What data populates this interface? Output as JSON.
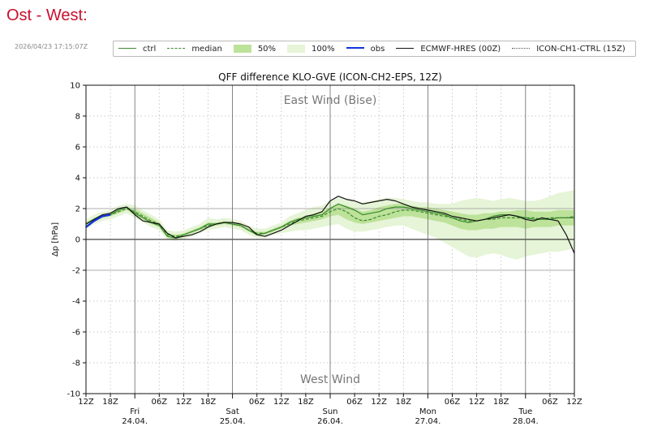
{
  "page": {
    "title": "Ost - West:",
    "timestamp": "2026/04/23 17:15:07Z"
  },
  "legend": {
    "items": [
      {
        "key": "ctrl",
        "label": "ctrl",
        "style": "line",
        "color": "#3a8a2e"
      },
      {
        "key": "median",
        "label": "median",
        "style": "dash",
        "color": "#3a8a2e"
      },
      {
        "key": "p50",
        "label": "50%",
        "style": "fill",
        "color": "#bde29a"
      },
      {
        "key": "p100",
        "label": "100%",
        "style": "fill",
        "color": "#e6f4d7"
      },
      {
        "key": "obs",
        "label": "obs",
        "style": "thick",
        "color": "#1133dd"
      },
      {
        "key": "ecmwf",
        "label": "ECMWF-HRES (00Z)",
        "style": "line",
        "color": "#111111"
      },
      {
        "key": "ch1",
        "label": "ICON-CH1-CTRL (15Z)",
        "style": "dot",
        "color": "#555555"
      }
    ]
  },
  "chart_data": {
    "type": "line",
    "title": "QFF difference KLO-GVE (ICON-CH2-EPS, 12Z)",
    "ylabel": "Δp [hPa]",
    "xlabel": "",
    "xlim": [
      0,
      120
    ],
    "ylim": [
      -10,
      10
    ],
    "yticks": [
      -10,
      -8,
      -6,
      -4,
      -2,
      0,
      2,
      4,
      6,
      8,
      10
    ],
    "annotations": {
      "top": "East Wind (Bise)",
      "bottom": "West Wind"
    },
    "x_ticks": [
      {
        "x": 0,
        "label": "12Z"
      },
      {
        "x": 6,
        "label": "18Z"
      },
      {
        "x": 18,
        "label": "06Z"
      },
      {
        "x": 24,
        "label": "12Z"
      },
      {
        "x": 30,
        "label": "18Z"
      },
      {
        "x": 42,
        "label": "06Z"
      },
      {
        "x": 48,
        "label": "12Z"
      },
      {
        "x": 54,
        "label": "18Z"
      },
      {
        "x": 66,
        "label": "06Z"
      },
      {
        "x": 72,
        "label": "12Z"
      },
      {
        "x": 78,
        "label": "18Z"
      },
      {
        "x": 90,
        "label": "06Z"
      },
      {
        "x": 96,
        "label": "12Z"
      },
      {
        "x": 102,
        "label": "18Z"
      },
      {
        "x": 114,
        "label": "06Z"
      },
      {
        "x": 120,
        "label": "12Z"
      }
    ],
    "days": [
      {
        "x": 12,
        "day": "Fri",
        "date": "24.04."
      },
      {
        "x": 36,
        "day": "Sat",
        "date": "25.04."
      },
      {
        "x": 60,
        "day": "Sun",
        "date": "26.04."
      },
      {
        "x": 84,
        "day": "Mon",
        "date": "27.04."
      },
      {
        "x": 108,
        "day": "Tue",
        "date": "28.04."
      }
    ],
    "x": [
      0,
      2,
      4,
      6,
      8,
      10,
      12,
      14,
      16,
      18,
      20,
      22,
      24,
      26,
      28,
      30,
      32,
      34,
      36,
      38,
      40,
      42,
      44,
      46,
      48,
      50,
      52,
      54,
      56,
      58,
      60,
      62,
      64,
      66,
      68,
      70,
      72,
      74,
      76,
      78,
      80,
      82,
      84,
      86,
      88,
      90,
      92,
      94,
      96,
      98,
      100,
      102,
      104,
      106,
      108,
      110,
      112,
      114,
      116,
      118,
      120
    ],
    "series": [
      {
        "name": "ctrl",
        "values": [
          1.0,
          1.3,
          1.5,
          1.6,
          1.9,
          2.1,
          1.7,
          1.4,
          1.1,
          0.9,
          0.2,
          0.1,
          0.3,
          0.5,
          0.7,
          1.0,
          1.0,
          1.1,
          1.0,
          0.9,
          0.6,
          0.3,
          0.4,
          0.6,
          0.8,
          1.1,
          1.3,
          1.4,
          1.5,
          1.6,
          2.0,
          2.3,
          2.1,
          1.9,
          1.6,
          1.7,
          1.8,
          2.0,
          2.1,
          2.1,
          2.0,
          1.9,
          1.8,
          1.7,
          1.6,
          1.4,
          1.2,
          1.1,
          1.2,
          1.3,
          1.5,
          1.6,
          1.6,
          1.5,
          1.4,
          1.3,
          1.3,
          1.3,
          1.4,
          1.4,
          1.4
        ]
      },
      {
        "name": "median",
        "values": [
          1.0,
          1.3,
          1.5,
          1.6,
          1.8,
          2.0,
          1.8,
          1.5,
          1.2,
          1.0,
          0.3,
          0.2,
          0.3,
          0.5,
          0.7,
          0.9,
          1.0,
          1.1,
          1.0,
          0.9,
          0.6,
          0.4,
          0.4,
          0.6,
          0.8,
          1.0,
          1.2,
          1.3,
          1.4,
          1.5,
          1.8,
          2.0,
          1.8,
          1.4,
          1.2,
          1.3,
          1.5,
          1.6,
          1.8,
          1.9,
          1.9,
          1.8,
          1.7,
          1.6,
          1.5,
          1.4,
          1.3,
          1.2,
          1.2,
          1.3,
          1.3,
          1.4,
          1.4,
          1.4,
          1.4,
          1.4,
          1.3,
          1.4,
          1.4,
          1.4,
          1.5
        ]
      },
      {
        "name": "p50_low",
        "values": [
          0.9,
          1.2,
          1.4,
          1.5,
          1.7,
          1.9,
          1.6,
          1.3,
          1.0,
          0.8,
          0.1,
          0.0,
          0.2,
          0.4,
          0.6,
          0.8,
          0.9,
          1.0,
          0.9,
          0.8,
          0.5,
          0.3,
          0.3,
          0.5,
          0.7,
          0.9,
          1.0,
          1.1,
          1.2,
          1.3,
          1.5,
          1.6,
          1.3,
          1.1,
          1.0,
          1.1,
          1.2,
          1.3,
          1.4,
          1.5,
          1.5,
          1.4,
          1.3,
          1.2,
          1.1,
          0.9,
          0.7,
          0.6,
          0.6,
          0.7,
          0.7,
          0.8,
          0.8,
          0.8,
          0.7,
          0.8,
          0.8,
          0.8,
          0.9,
          0.9,
          0.9
        ]
      },
      {
        "name": "p50_high",
        "values": [
          1.1,
          1.4,
          1.6,
          1.7,
          2.0,
          2.1,
          2.0,
          1.7,
          1.4,
          1.1,
          0.4,
          0.3,
          0.4,
          0.6,
          0.8,
          1.1,
          1.1,
          1.2,
          1.1,
          1.0,
          0.7,
          0.5,
          0.5,
          0.7,
          0.9,
          1.2,
          1.4,
          1.5,
          1.7,
          1.8,
          2.1,
          2.3,
          2.2,
          2.0,
          1.8,
          1.9,
          2.1,
          2.2,
          2.3,
          2.3,
          2.2,
          2.1,
          2.1,
          2.0,
          1.9,
          1.8,
          1.7,
          1.6,
          1.6,
          1.7,
          1.7,
          1.8,
          1.8,
          1.9,
          1.9,
          1.8,
          1.8,
          1.8,
          1.9,
          1.9,
          1.9
        ]
      },
      {
        "name": "p100_low",
        "values": [
          0.7,
          1.0,
          1.2,
          1.3,
          1.5,
          1.7,
          1.4,
          1.1,
          0.8,
          0.6,
          0.0,
          -0.1,
          0.0,
          0.2,
          0.4,
          0.6,
          0.7,
          0.8,
          0.7,
          0.6,
          0.3,
          0.1,
          0.1,
          0.3,
          0.4,
          0.5,
          0.6,
          0.6,
          0.7,
          0.8,
          0.9,
          1.0,
          0.7,
          0.5,
          0.5,
          0.6,
          0.7,
          0.8,
          0.9,
          0.9,
          0.7,
          0.5,
          0.3,
          0.1,
          -0.2,
          -0.5,
          -0.8,
          -1.1,
          -1.2,
          -1.0,
          -0.9,
          -1.0,
          -1.2,
          -1.3,
          -1.1,
          -1.0,
          -0.9,
          -0.8,
          -0.8,
          -0.7,
          -0.6
        ]
      },
      {
        "name": "p100_high",
        "values": [
          1.3,
          1.6,
          1.8,
          1.9,
          2.2,
          2.3,
          2.2,
          1.9,
          1.6,
          1.3,
          0.6,
          0.5,
          0.6,
          0.8,
          1.0,
          1.4,
          1.3,
          1.4,
          1.3,
          1.2,
          0.9,
          0.7,
          0.7,
          0.9,
          1.1,
          1.5,
          1.7,
          1.9,
          2.1,
          2.2,
          2.5,
          2.7,
          2.6,
          2.5,
          2.4,
          2.5,
          2.6,
          2.7,
          2.7,
          2.6,
          2.5,
          2.4,
          2.4,
          2.3,
          2.3,
          2.3,
          2.5,
          2.6,
          2.7,
          2.6,
          2.5,
          2.6,
          2.7,
          2.6,
          2.5,
          2.5,
          2.6,
          2.8,
          3.0,
          3.1,
          3.2
        ]
      },
      {
        "name": "ECMWF-HRES (00Z)",
        "values": [
          null,
          null,
          null,
          null,
          null,
          null,
          null,
          null,
          null,
          null,
          null,
          null,
          null,
          null,
          null,
          null,
          null,
          null,
          null,
          null,
          null,
          null,
          null,
          null,
          null,
          null,
          null,
          null,
          null,
          null,
          null,
          null,
          null,
          null,
          null,
          null,
          null,
          null,
          null,
          null,
          null,
          null,
          null,
          null,
          null,
          null,
          null,
          null,
          null,
          null,
          null,
          null,
          null,
          null,
          null,
          null,
          null,
          null,
          null,
          null,
          null
        ]
      },
      {
        "name": "ecmwf",
        "values": [
          1.0,
          1.3,
          1.6,
          1.7,
          2.0,
          2.1,
          1.6,
          1.2,
          1.1,
          1.0,
          0.4,
          0.1,
          0.2,
          0.3,
          0.5,
          0.8,
          1.0,
          1.1,
          1.1,
          1.0,
          0.8,
          0.3,
          0.2,
          0.4,
          0.6,
          0.9,
          1.2,
          1.5,
          1.6,
          1.8,
          2.5,
          2.8,
          2.6,
          2.5,
          2.3,
          2.4,
          2.5,
          2.6,
          2.5,
          2.3,
          2.1,
          2.0,
          1.9,
          1.8,
          1.7,
          1.5,
          1.4,
          1.3,
          1.2,
          1.3,
          1.4,
          1.5,
          1.6,
          1.5,
          1.3,
          1.2,
          1.4,
          1.3,
          1.2,
          0.3,
          -0.9
        ]
      },
      {
        "name": "obs",
        "values": [
          0.8,
          1.2,
          1.5,
          1.6,
          null,
          null,
          null,
          null,
          null,
          null,
          null,
          null,
          null,
          null,
          null,
          null,
          null,
          null,
          null,
          null,
          null,
          null,
          null,
          null,
          null,
          null,
          null,
          null,
          null,
          null,
          null,
          null,
          null,
          null,
          null,
          null,
          null,
          null,
          null,
          null,
          null,
          null,
          null,
          null,
          null,
          null,
          null,
          null,
          null,
          null,
          null,
          null,
          null,
          null,
          null,
          null,
          null,
          null,
          null,
          null,
          null
        ]
      }
    ]
  }
}
